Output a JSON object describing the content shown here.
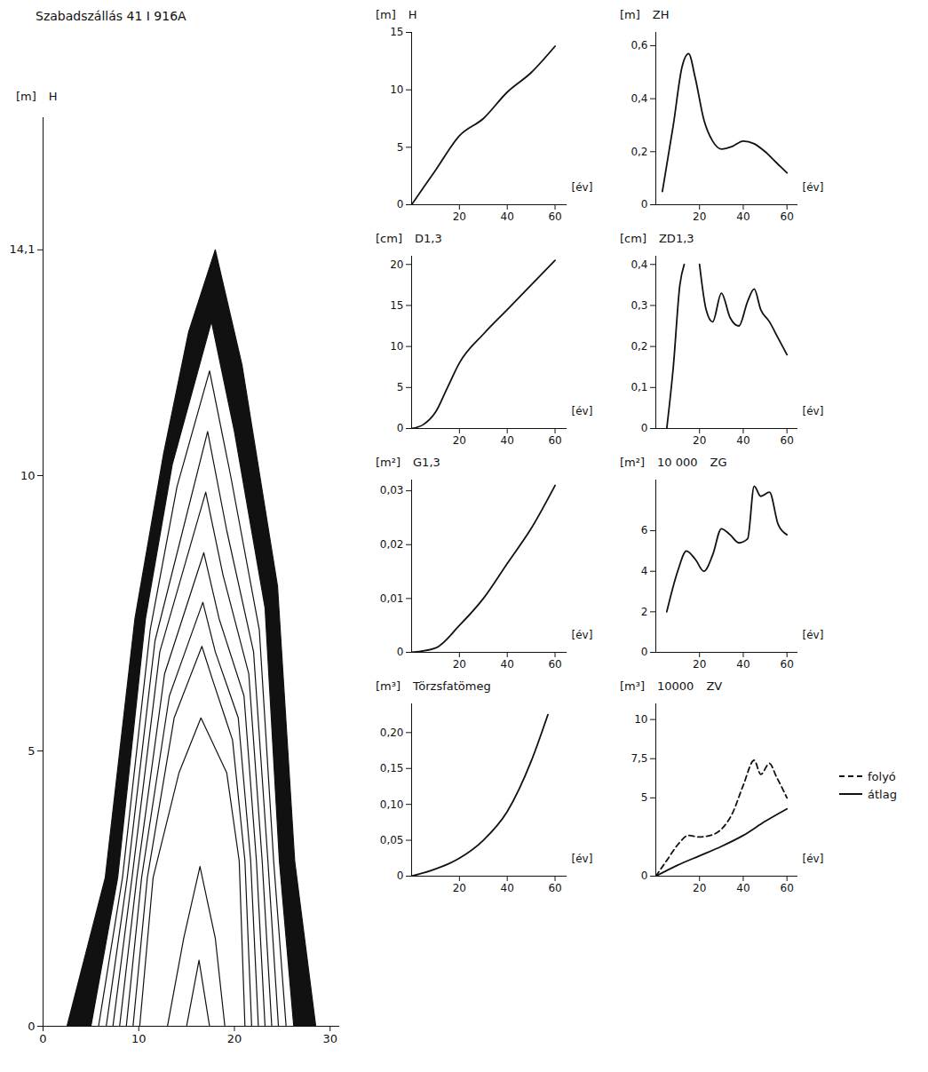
{
  "chart_data": [
    {
      "type": "stem_profile",
      "title": "Szabadszállás 41 I 916A",
      "yunit": "[m]",
      "ylabel": "H",
      "color": "#111111",
      "xlim": [
        0,
        31
      ],
      "xticks": [
        0,
        10,
        20,
        30
      ],
      "ylim": [
        0,
        16.5
      ],
      "yticks": [
        0,
        5,
        10,
        {
          "value": 14.1,
          "label": "14,1"
        }
      ],
      "series": [
        {
          "x": [
            2.5,
            6.5,
            9.6,
            12.6,
            15.2,
            18.0,
            20.8,
            24.5,
            26.3,
            28.5
          ],
          "y": [
            0,
            2.7,
            7.4,
            10.4,
            12.6,
            14.1,
            12.0,
            8.0,
            3.0,
            0
          ]
        },
        {
          "x": [
            4.0,
            7.2,
            10.2,
            13.0,
            15.4,
            17.8,
            20.4,
            23.8,
            25.4,
            27.2
          ],
          "y": [
            0,
            2.7,
            7.4,
            10.4,
            12.4,
            13.6,
            11.6,
            7.8,
            3.0,
            0
          ]
        },
        {
          "x": [
            5.0,
            7.8,
            10.7,
            13.5,
            17.6,
            20.0,
            23.2,
            24.7,
            26.2
          ],
          "y": [
            0,
            2.7,
            7.4,
            10.2,
            12.8,
            10.8,
            7.6,
            3.0,
            0
          ]
        },
        {
          "x": [
            5.8,
            8.3,
            11.2,
            14.0,
            17.4,
            19.6,
            22.6,
            24.1,
            25.4
          ],
          "y": [
            0,
            2.7,
            7.2,
            9.8,
            11.9,
            10.0,
            7.2,
            3.0,
            0
          ]
        },
        {
          "x": [
            6.6,
            8.8,
            11.7,
            17.2,
            19.2,
            22.0,
            23.5,
            24.6
          ],
          "y": [
            0,
            2.7,
            7.0,
            10.8,
            9.0,
            6.8,
            3.0,
            0
          ]
        },
        {
          "x": [
            7.3,
            9.3,
            12.2,
            17.0,
            18.8,
            21.5,
            22.9,
            23.9
          ],
          "y": [
            0,
            2.7,
            6.8,
            9.7,
            8.2,
            6.4,
            3.0,
            0
          ]
        },
        {
          "x": [
            8.0,
            9.8,
            12.7,
            16.8,
            18.4,
            21.0,
            22.3,
            23.2
          ],
          "y": [
            0,
            2.7,
            6.4,
            8.6,
            7.4,
            6.0,
            3.0,
            0
          ]
        },
        {
          "x": [
            8.7,
            10.3,
            13.2,
            16.7,
            18.0,
            20.4,
            21.7,
            22.5
          ],
          "y": [
            0,
            2.7,
            6.0,
            7.7,
            6.8,
            5.6,
            3.0,
            0
          ]
        },
        {
          "x": [
            9.4,
            10.9,
            13.7,
            16.6,
            17.7,
            19.8,
            21.1,
            21.8
          ],
          "y": [
            0,
            2.7,
            5.6,
            6.9,
            6.3,
            5.2,
            3.0,
            0
          ]
        },
        {
          "x": [
            10.1,
            11.5,
            14.2,
            16.5,
            19.2,
            20.5,
            21.1
          ],
          "y": [
            0,
            2.7,
            4.6,
            5.6,
            4.6,
            3.0,
            0
          ]
        },
        {
          "x": [
            13.0,
            14.7,
            16.4,
            18.0,
            19.0
          ],
          "y": [
            0,
            1.6,
            2.9,
            1.6,
            0
          ]
        },
        {
          "x": [
            15.0,
            16.3,
            17.4
          ],
          "y": [
            0,
            1.2,
            0
          ]
        }
      ]
    },
    {
      "type": "line",
      "title": "H",
      "unit": "[m]",
      "xunit": "[év]",
      "color": "#111111",
      "xlim": [
        0,
        65
      ],
      "xticks": [
        20,
        40,
        60
      ],
      "ylim": [
        0,
        15
      ],
      "yticks": [
        0,
        5,
        10,
        15
      ],
      "x": [
        0,
        10,
        20,
        30,
        40,
        50,
        60
      ],
      "values": [
        0,
        3,
        6,
        7.5,
        9.8,
        11.5,
        13.8
      ]
    },
    {
      "type": "line",
      "title": "ZH",
      "unit": "[m]",
      "xunit": "[év]",
      "color": "#111111",
      "xlim": [
        0,
        65
      ],
      "xticks": [
        20,
        40,
        60
      ],
      "ylim": [
        0,
        0.65
      ],
      "yticks": [
        0,
        {
          "value": 0.2,
          "label": "0,2"
        },
        {
          "value": 0.4,
          "label": "0,4"
        },
        {
          "value": 0.6,
          "label": "0,6"
        }
      ],
      "x": [
        3,
        8,
        12,
        15,
        18,
        22,
        26,
        30,
        35,
        40,
        45,
        50,
        55,
        60
      ],
      "values": [
        0.05,
        0.3,
        0.52,
        0.57,
        0.48,
        0.32,
        0.24,
        0.21,
        0.22,
        0.24,
        0.23,
        0.2,
        0.16,
        0.12
      ]
    },
    {
      "type": "line",
      "title": "D1,3",
      "unit": "[cm]",
      "xunit": "[év]",
      "color": "#111111",
      "xlim": [
        0,
        65
      ],
      "xticks": [
        20,
        40,
        60
      ],
      "ylim": [
        0,
        21
      ],
      "yticks": [
        0,
        5,
        10,
        15,
        20
      ],
      "x": [
        0,
        5,
        10,
        15,
        20,
        30,
        40,
        50,
        60
      ],
      "values": [
        0,
        0.5,
        2,
        5,
        8,
        11.5,
        14.5,
        17.5,
        20.5
      ]
    },
    {
      "type": "line",
      "title": "ZD1,3",
      "unit": "[cm]",
      "xunit": "[év]",
      "color": "#111111",
      "xlim": [
        0,
        65
      ],
      "xticks": [
        20,
        40,
        60
      ],
      "ylim": [
        0,
        0.42
      ],
      "yticks": [
        0,
        {
          "value": 0.1,
          "label": "0,1"
        },
        {
          "value": 0.2,
          "label": "0,2"
        },
        {
          "value": 0.3,
          "label": "0,3"
        },
        {
          "value": 0.4,
          "label": "0,4"
        }
      ],
      "x": [
        5,
        8,
        11,
        13,
        16,
        20,
        23,
        26,
        30,
        34,
        38,
        42,
        45,
        48,
        52,
        56,
        60
      ],
      "values": [
        0,
        0.15,
        0.35,
        0.4,
        null,
        0.4,
        0.29,
        0.26,
        0.33,
        0.27,
        0.25,
        0.31,
        0.34,
        0.29,
        0.26,
        0.22,
        0.18
      ]
    },
    {
      "type": "line",
      "title": "G1,3",
      "unit": "[m²]",
      "xunit": "[év]",
      "color": "#111111",
      "xlim": [
        0,
        65
      ],
      "xticks": [
        20,
        40,
        60
      ],
      "ylim": [
        0,
        0.032
      ],
      "yticks": [
        0,
        {
          "value": 0.01,
          "label": "0,01"
        },
        {
          "value": 0.02,
          "label": "0,02"
        },
        {
          "value": 0.03,
          "label": "0,03"
        }
      ],
      "x": [
        0,
        10,
        20,
        30,
        40,
        50,
        60
      ],
      "values": [
        0,
        0.0008,
        0.005,
        0.01,
        0.0165,
        0.023,
        0.031
      ]
    },
    {
      "type": "line",
      "title": "ZG",
      "unit": "[m²]",
      "scale_label": "10 000",
      "xunit": "[év]",
      "color": "#111111",
      "xlim": [
        0,
        65
      ],
      "xticks": [
        20,
        40,
        60
      ],
      "ylim": [
        0,
        8.5
      ],
      "yticks": [
        0,
        2,
        4,
        6
      ],
      "x": [
        5,
        10,
        14,
        18,
        22,
        26,
        30,
        34,
        38,
        42,
        45,
        48,
        52,
        56,
        60
      ],
      "values": [
        2,
        4,
        5,
        4.6,
        4,
        4.8,
        6.1,
        5.8,
        5.4,
        5.6,
        8.2,
        7.7,
        7.9,
        6.3,
        5.8
      ]
    },
    {
      "type": "line",
      "title": "Törzsfatömeg",
      "unit": "[m³]",
      "xunit": "[év]",
      "color": "#111111",
      "xlim": [
        0,
        65
      ],
      "xticks": [
        20,
        40,
        60
      ],
      "ylim": [
        0,
        0.24
      ],
      "yticks": [
        0,
        {
          "value": 0.05,
          "label": "0,05"
        },
        {
          "value": 0.1,
          "label": "0,10"
        },
        {
          "value": 0.15,
          "label": "0,15"
        },
        {
          "value": 0.2,
          "label": "0,20"
        }
      ],
      "x": [
        0,
        10,
        20,
        30,
        40,
        50,
        57
      ],
      "values": [
        0,
        0.01,
        0.025,
        0.05,
        0.09,
        0.16,
        0.225
      ]
    },
    {
      "type": "line",
      "title": "ZV",
      "unit": "[m³]",
      "scale_label": "10000",
      "xunit": "[év]",
      "legend": "right",
      "xlim": [
        0,
        65
      ],
      "xticks": [
        20,
        40,
        60
      ],
      "ylim": [
        0,
        11
      ],
      "yticks": [
        0,
        5,
        {
          "value": 7.5,
          "label": "7,5"
        },
        10
      ],
      "series": [
        {
          "name": "folyó",
          "color": "#111111",
          "line_style": "dashed",
          "x": [
            0,
            5,
            10,
            15,
            20,
            25,
            30,
            35,
            40,
            45,
            48,
            52,
            55,
            60
          ],
          "values": [
            0,
            1,
            2,
            2.6,
            2.5,
            2.6,
            3,
            4,
            5.8,
            7.4,
            6.5,
            7.2,
            6.4,
            5
          ]
        },
        {
          "name": "átlag",
          "color": "#111111",
          "line_style": "solid",
          "x": [
            0,
            10,
            20,
            30,
            40,
            50,
            60
          ],
          "values": [
            0,
            0.7,
            1.3,
            1.9,
            2.6,
            3.5,
            4.3
          ]
        }
      ]
    }
  ]
}
